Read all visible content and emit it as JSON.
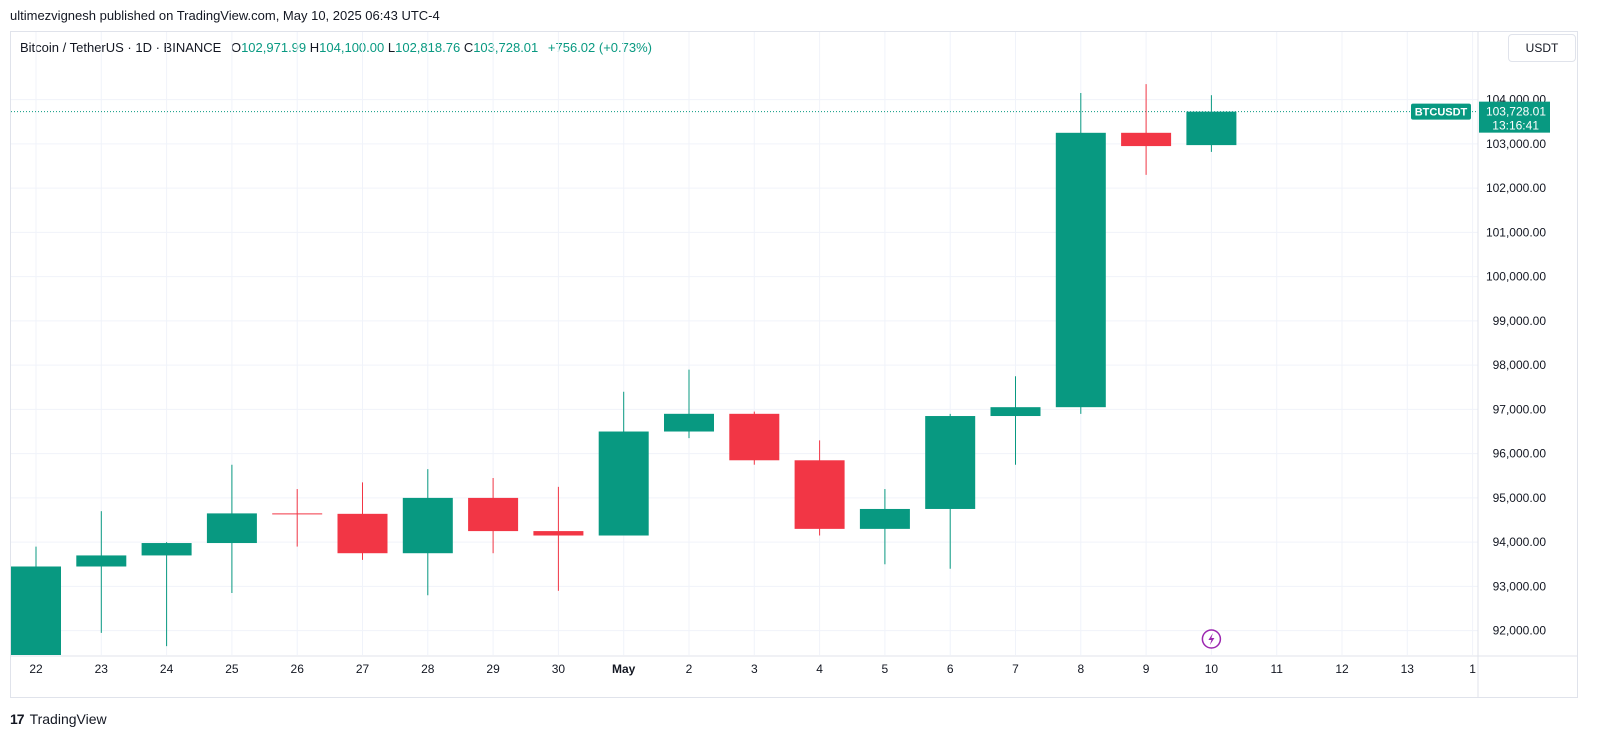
{
  "header": {
    "published_text": "ultimezvignesh published on TradingView.com, May 10, 2025 06:43 UTC-4"
  },
  "symbol": {
    "name": "Bitcoin / TetherUS · 1D · BINANCE",
    "open_label": "O",
    "open": "102,971.99",
    "high_label": "H",
    "high": "104,100.00",
    "low_label": "L",
    "low": "102,818.76",
    "close_label": "C",
    "close": "103,728.01",
    "change": "+756.02 (+0.73%)"
  },
  "currency_button": "USDT",
  "price_tag": {
    "ticker": "BTCUSDT",
    "price": "103,728.01",
    "countdown": "13:16:41"
  },
  "brand": {
    "logo_glyph": "17",
    "name": "TradingView"
  },
  "colors": {
    "up": "#089981",
    "down": "#f23645",
    "grid": "#f0f3fa",
    "axis_text": "#131722",
    "event_icon": "#9c27b0"
  },
  "chart_data": {
    "type": "candlestick",
    "x_tick_labels": [
      "22",
      "23",
      "24",
      "25",
      "26",
      "27",
      "28",
      "29",
      "30",
      "May",
      "2",
      "3",
      "4",
      "5",
      "6",
      "7",
      "8",
      "9",
      "10",
      "11",
      "12",
      "13",
      "1"
    ],
    "y_tick_labels": [
      "104,000.00",
      "103,000.00",
      "102,000.00",
      "101,000.00",
      "100,000.00",
      "99,000.00",
      "98,000.00",
      "97,000.00",
      "96,000.00",
      "95,000.00",
      "94,000.00",
      "93,000.00",
      "92,000.00"
    ],
    "y_ticks": [
      104000,
      103000,
      102000,
      101000,
      100000,
      99000,
      98000,
      97000,
      96000,
      95000,
      94000,
      93000,
      92000
    ],
    "ylim": [
      91450,
      104850
    ],
    "last_price": 103728.01,
    "event_marker_day": "10",
    "candles": [
      {
        "day": "22",
        "open": 91450,
        "high": 93900,
        "low": 91450,
        "close": 93450
      },
      {
        "day": "23",
        "open": 93450,
        "high": 94700,
        "low": 91950,
        "close": 93700
      },
      {
        "day": "24",
        "open": 93700,
        "high": 94000,
        "low": 91650,
        "close": 93980
      },
      {
        "day": "25",
        "open": 93980,
        "high": 95750,
        "low": 92850,
        "close": 94650
      },
      {
        "day": "26",
        "open": 94650,
        "high": 95200,
        "low": 93900,
        "close": 94640
      },
      {
        "day": "27",
        "open": 94640,
        "high": 95350,
        "low": 93600,
        "close": 93750
      },
      {
        "day": "28",
        "open": 93750,
        "high": 95650,
        "low": 92800,
        "close": 95000
      },
      {
        "day": "29",
        "open": 95000,
        "high": 95450,
        "low": 93750,
        "close": 94250
      },
      {
        "day": "30",
        "open": 94250,
        "high": 95250,
        "low": 92900,
        "close": 94150
      },
      {
        "day": "May",
        "open": 94150,
        "high": 97400,
        "low": 94150,
        "close": 96500
      },
      {
        "day": "2",
        "open": 96500,
        "high": 97900,
        "low": 96350,
        "close": 96900
      },
      {
        "day": "3",
        "open": 96900,
        "high": 96950,
        "low": 95750,
        "close": 95850
      },
      {
        "day": "4",
        "open": 95850,
        "high": 96300,
        "low": 94150,
        "close": 94300
      },
      {
        "day": "5",
        "open": 94300,
        "high": 95200,
        "low": 93500,
        "close": 94750
      },
      {
        "day": "6",
        "open": 94750,
        "high": 96900,
        "low": 93400,
        "close": 96850
      },
      {
        "day": "7",
        "open": 96850,
        "high": 97750,
        "low": 95750,
        "close": 97050
      },
      {
        "day": "8",
        "open": 97050,
        "high": 104150,
        "low": 96900,
        "close": 103250
      },
      {
        "day": "9",
        "open": 103250,
        "high": 104350,
        "low": 102300,
        "close": 102950
      },
      {
        "day": "10",
        "open": 102971.99,
        "high": 104100,
        "low": 102818.76,
        "close": 103728.01
      }
    ]
  }
}
